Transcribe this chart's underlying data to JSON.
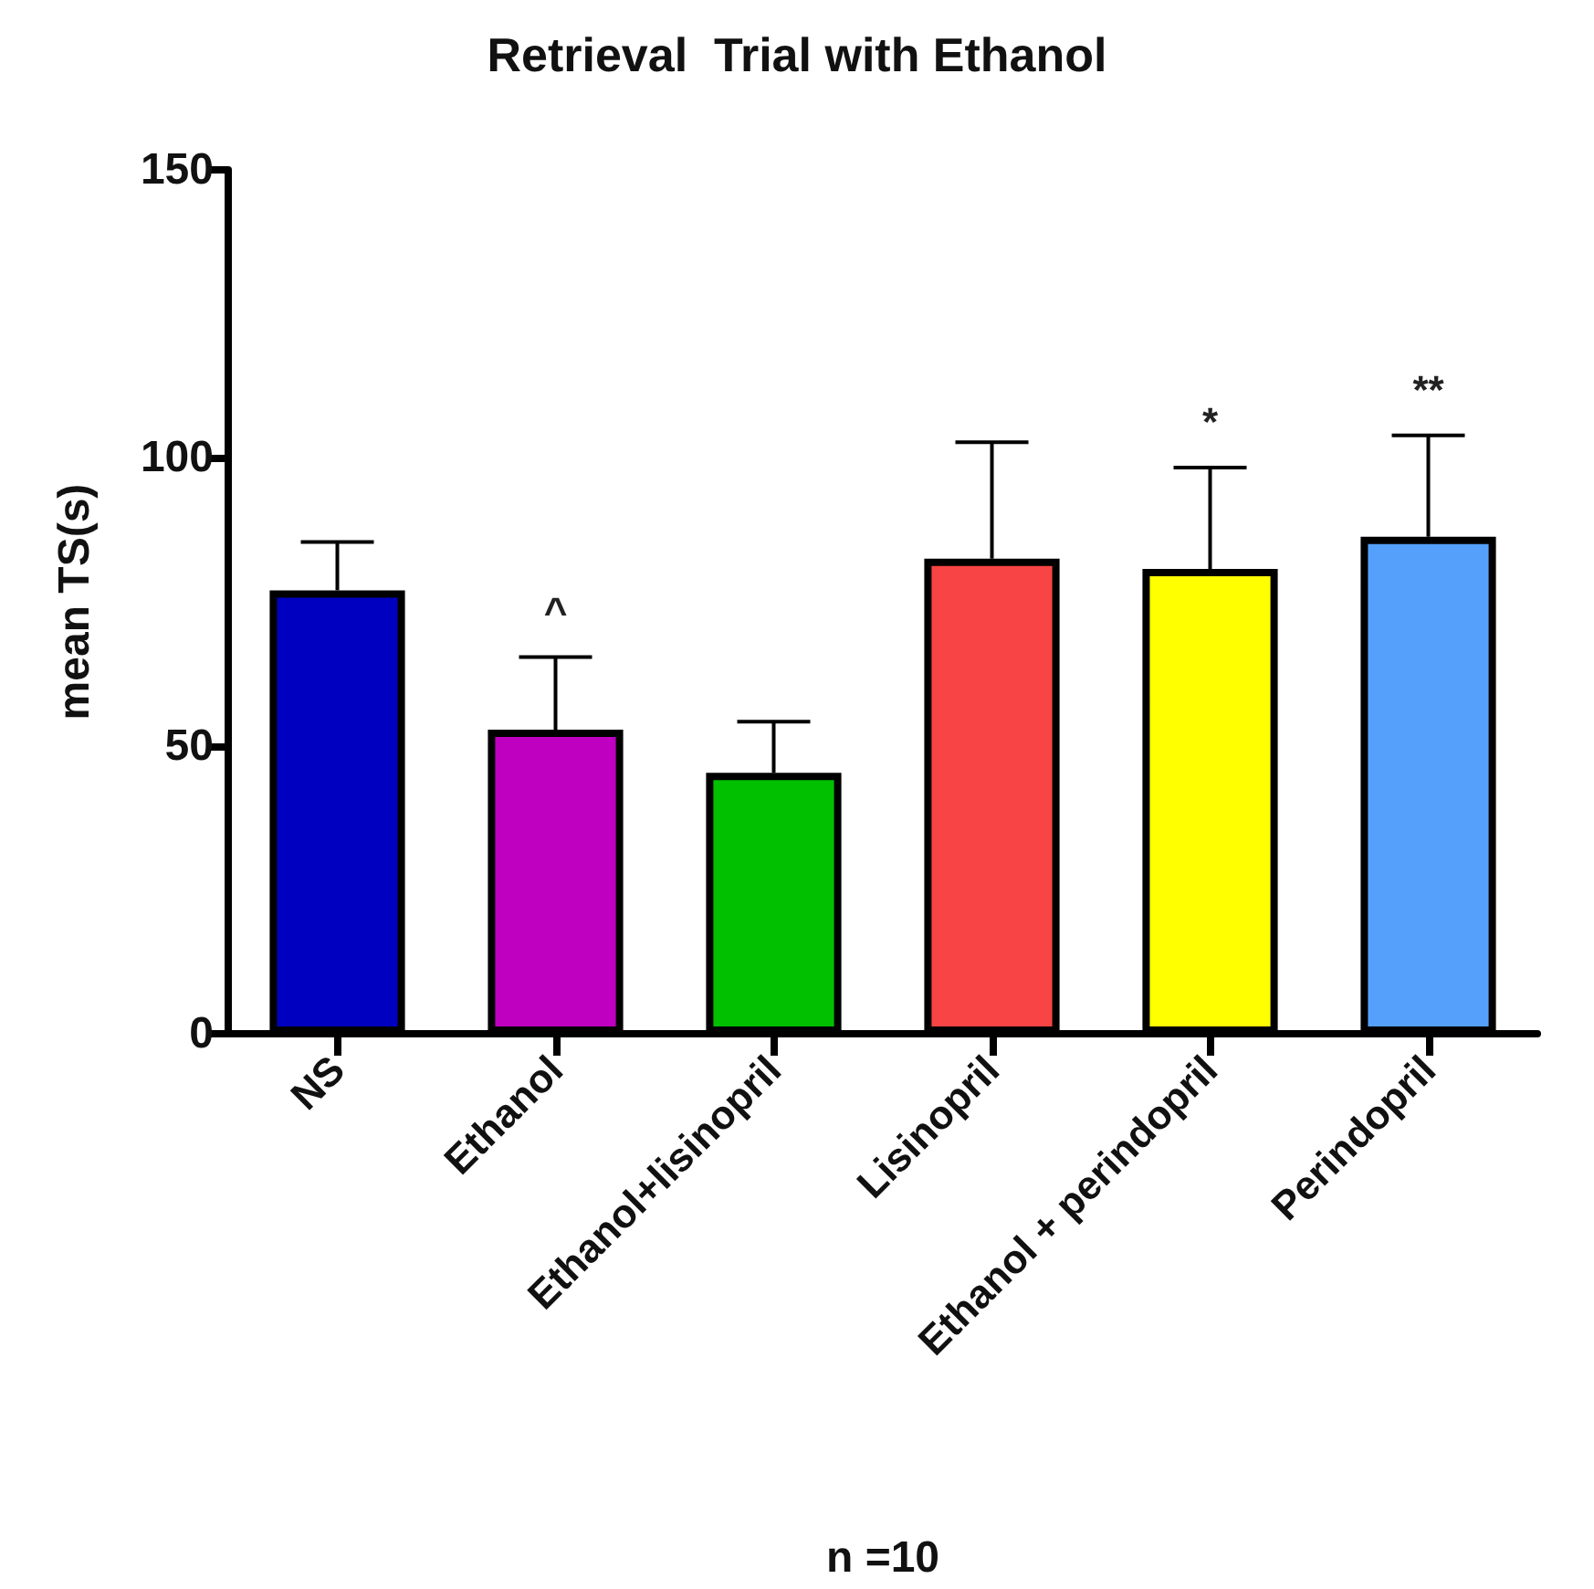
{
  "chart_data": {
    "type": "bar",
    "title": "Retrieval  Trial with Ethanol",
    "xlabel": "n =10",
    "ylabel": "mean TS(s)",
    "categories": [
      "NS",
      "Ethanol",
      "Ethanol+lisinopril",
      "Lisinopril",
      "Ethanol + perindopril",
      "Perindopril"
    ],
    "values": [
      77,
      52.8,
      45.3,
      82.5,
      80.7,
      86.3
    ],
    "colors": [
      "#0000c0",
      "#c000c0",
      "#00c000",
      "#f84444",
      "#ffff00",
      "#55a0fa"
    ],
    "errors": [
      [
        77,
        85.4
      ],
      [
        52.8,
        65.4
      ],
      [
        45.3,
        54.2
      ],
      [
        82.5,
        102.7
      ],
      [
        80.7,
        98.3
      ],
      [
        86.3,
        103.9
      ]
    ],
    "ylim": [
      0,
      150
    ],
    "yticks": [
      0,
      50,
      100,
      150
    ],
    "grid": false,
    "annotations": [
      {
        "text": "^",
        "x": "Ethanol",
        "y": 65.4
      },
      {
        "text": "*",
        "x": "Ethanol + perindopril",
        "y": 98.3
      },
      {
        "text": "**",
        "x": "Perindopril",
        "y": 103.9
      }
    ]
  }
}
